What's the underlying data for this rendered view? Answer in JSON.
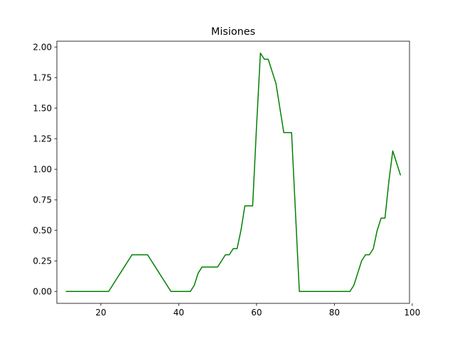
{
  "chart_data": {
    "type": "line",
    "title": "Misiones",
    "xlabel": "",
    "ylabel": "",
    "xlim": [
      8.7,
      99.3
    ],
    "ylim": [
      -0.0975,
      2.0475
    ],
    "x_ticks": [
      20,
      40,
      60,
      80,
      100
    ],
    "y_ticks": [
      0.0,
      0.25,
      0.5,
      0.75,
      1.0,
      1.25,
      1.5,
      1.75,
      2.0
    ],
    "x_tick_labels": [
      "20",
      "40",
      "60",
      "80",
      "100"
    ],
    "y_tick_labels": [
      "0.00",
      "0.25",
      "0.50",
      "0.75",
      "1.00",
      "1.25",
      "1.50",
      "1.75",
      "2.00"
    ],
    "grid": false,
    "series": [
      {
        "color": "#008000",
        "x": [
          11,
          12,
          13,
          14,
          15,
          16,
          17,
          18,
          19,
          20,
          21,
          22,
          23,
          24,
          25,
          26,
          27,
          28,
          29,
          30,
          31,
          32,
          33,
          34,
          35,
          36,
          37,
          38,
          39,
          40,
          41,
          42,
          43,
          44,
          45,
          46,
          47,
          48,
          49,
          50,
          51,
          52,
          53,
          54,
          55,
          56,
          57,
          58,
          59,
          60,
          61,
          62,
          63,
          64,
          65,
          66,
          67,
          68,
          69,
          70,
          71,
          72,
          73,
          74,
          75,
          76,
          77,
          78,
          79,
          80,
          81,
          82,
          83,
          84,
          85,
          86,
          87,
          88,
          89,
          90,
          91,
          92,
          93,
          94,
          95,
          96,
          97
        ],
        "y": [
          0,
          0,
          0,
          0,
          0,
          0,
          0,
          0,
          0,
          0,
          0,
          0,
          0.05,
          0.1,
          0.15,
          0.2,
          0.25,
          0.3,
          0.3,
          0.3,
          0.3,
          0.3,
          0.25,
          0.2,
          0.15,
          0.1,
          0.05,
          0,
          0,
          0,
          0,
          0,
          0,
          0.05,
          0.15,
          0.2,
          0.2,
          0.2,
          0.2,
          0.2,
          0.25,
          0.3,
          0.3,
          0.35,
          0.35,
          0.5,
          0.7,
          0.7,
          0.7,
          1.35,
          1.95,
          1.9,
          1.9,
          1.8,
          1.7,
          1.5,
          1.3,
          1.3,
          1.3,
          0.65,
          0,
          0,
          0,
          0,
          0,
          0,
          0,
          0,
          0,
          0,
          0,
          0,
          0,
          0,
          0.05,
          0.15,
          0.25,
          0.3,
          0.3,
          0.35,
          0.5,
          0.6,
          0.6,
          0.9,
          1.15,
          1.05,
          0.95
        ]
      }
    ]
  }
}
